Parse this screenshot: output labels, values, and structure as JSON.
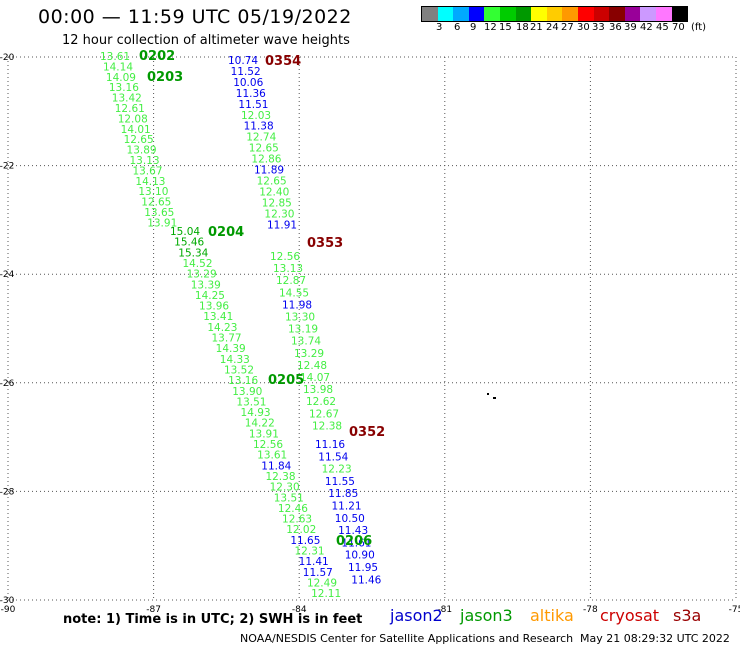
{
  "header": {
    "title": "00:00 — 11:59 UTC 05/19/2022",
    "subtitle": "12 hour collection of altimeter wave heights"
  },
  "legend": {
    "colors": [
      "#808080",
      "#00ffff",
      "#00aaff",
      "#0000ff",
      "#33ff33",
      "#00cc00",
      "#009900",
      "#ffff00",
      "#ffcc00",
      "#ff9900",
      "#ff0000",
      "#cc0000",
      "#880000",
      "#990099",
      "#cc99ff",
      "#ff77ff",
      "#000000"
    ],
    "labels": [
      "3",
      "6",
      "9",
      "12",
      "15",
      "18",
      "21",
      "24",
      "27",
      "30",
      "33",
      "36",
      "39",
      "42",
      "45",
      "70",
      "(ft)"
    ]
  },
  "axes": {
    "lon_labels": [
      "-90",
      "-87",
      "-84",
      "-81",
      "-78",
      "-75"
    ],
    "lat_labels": [
      "-20",
      "-22",
      "-24",
      "-26",
      "-28",
      "-30"
    ]
  },
  "tracks": [
    {
      "pass": "0202",
      "values": [
        "13.61",
        "14.14",
        "14.09",
        "13.16",
        "13.42",
        "12.61",
        "12.08",
        "14.01",
        "12.65",
        "13.89",
        "13.13",
        "13.67",
        "14.13",
        "13.10",
        "12.65",
        "13.65",
        "13.91"
      ]
    },
    {
      "pass": "0203",
      "values": []
    },
    {
      "pass": "0204",
      "values": [
        "15.04",
        "15.46",
        "15.34",
        "14.52",
        "13.29",
        "13.39",
        "14.25",
        "13.96",
        "13.41",
        "14.23",
        "13.77",
        "14.39",
        "14.33",
        "13.52",
        "13.16",
        "13.90",
        "13.51",
        "14.93",
        "14.22",
        "13.91",
        "12.56",
        "13.61",
        "11.84",
        "12.38",
        "12.30",
        "13.51",
        "12.46",
        "12.63",
        "12.02",
        "11.65",
        "12.31",
        "11.41",
        "11.57",
        "12.49",
        "12.11"
      ]
    },
    {
      "pass": "0205",
      "values": []
    },
    {
      "pass": "0206",
      "values": []
    },
    {
      "pass": "0354",
      "values": [
        "10.74",
        "11.52",
        "10.06",
        "11.36",
        "11.51",
        "12.03",
        "11.38",
        "12.74",
        "12.65",
        "12.86",
        "11.89",
        "12.65",
        "12.40",
        "12.85",
        "12.30",
        "11.91"
      ]
    },
    {
      "pass": "0353",
      "values": [
        "12.56",
        "13.13",
        "12.87",
        "14.55",
        "11.98",
        "13.30",
        "13.19",
        "13.74",
        "13.29",
        "12.48",
        "14.07",
        "13.98",
        "12.62",
        "12.67",
        "12.38"
      ]
    },
    {
      "pass": "0352",
      "values": [
        "11.16",
        "11.54",
        "12.23",
        "11.55",
        "11.85",
        "11.21",
        "10.50",
        "11.43",
        "11.61",
        "10.90",
        "11.95",
        "11.46"
      ]
    }
  ],
  "note": "note: 1) Time is in UTC; 2) SWH is in feet",
  "satellites": [
    {
      "name": "jason2",
      "color": "#0000cc"
    },
    {
      "name": "jason3",
      "color": "#009900"
    },
    {
      "name": "altika",
      "color": "#ff9900"
    },
    {
      "name": "cryosat",
      "color": "#cc0000"
    },
    {
      "name": "s3a",
      "color": "#990000"
    }
  ],
  "footer_left": "NOAA/NESDIS Center for Satellite Applications and Research",
  "footer_right": "May 21 08:29:32 UTC 2022"
}
